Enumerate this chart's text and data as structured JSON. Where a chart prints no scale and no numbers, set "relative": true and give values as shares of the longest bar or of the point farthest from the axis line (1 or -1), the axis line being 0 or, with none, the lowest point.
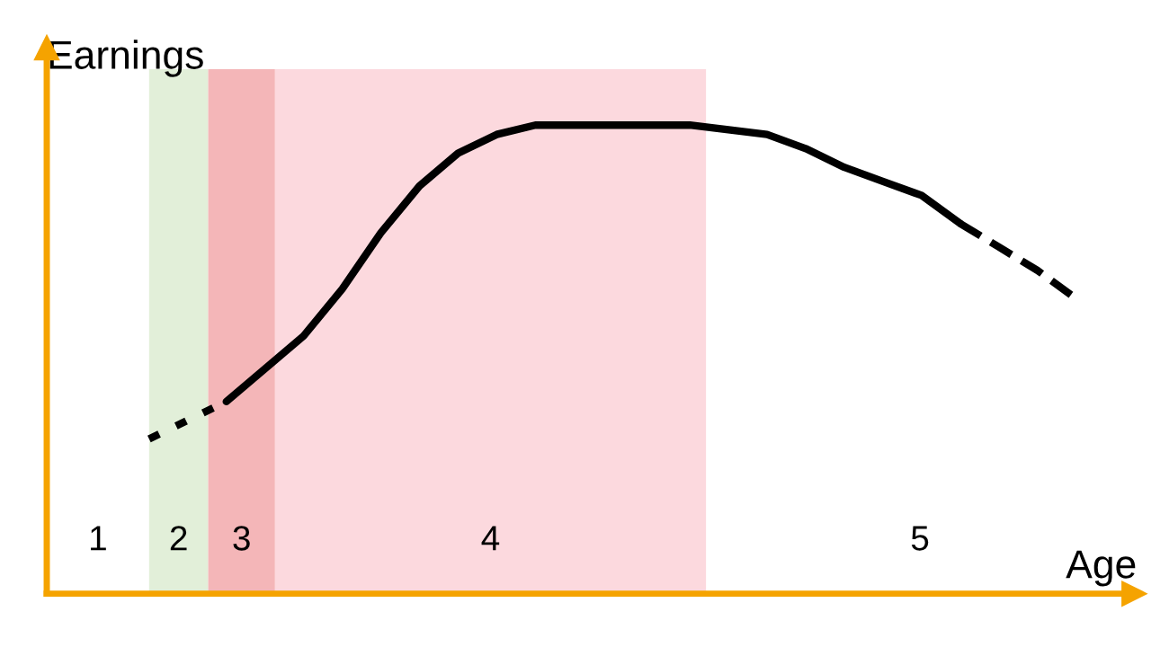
{
  "chart_data": {
    "type": "line",
    "relative": true,
    "xlabel": "Age",
    "ylabel": "Earnings",
    "categories": [
      null,
      null,
      null,
      null,
      null,
      null,
      null,
      null,
      null,
      null,
      null,
      null,
      null,
      null,
      null,
      null,
      null,
      null,
      null,
      null,
      null,
      null,
      null,
      null,
      null
    ],
    "series": [
      {
        "color": "#000000",
        "line_style": "dotted",
        "values": [
          0.33,
          0.37,
          0.41,
          null,
          null,
          null,
          null,
          null,
          null,
          null,
          null,
          null,
          null,
          null,
          null,
          null,
          null,
          null,
          null,
          null,
          null,
          null,
          null,
          null,
          null
        ]
      },
      {
        "color": "#000000",
        "line_style": "solid",
        "values": [
          null,
          null,
          0.41,
          0.48,
          0.55,
          0.65,
          0.77,
          0.87,
          0.94,
          0.98,
          1.0,
          1.0,
          1.0,
          1.0,
          1.0,
          0.99,
          0.98,
          0.95,
          0.91,
          0.88,
          0.85,
          0.79,
          null,
          null,
          null
        ]
      },
      {
        "color": "#000000",
        "line_style": "dashed",
        "values": [
          null,
          null,
          null,
          null,
          null,
          null,
          null,
          null,
          null,
          null,
          null,
          null,
          null,
          null,
          null,
          null,
          null,
          null,
          null,
          null,
          null,
          0.79,
          0.74,
          0.69,
          0.63
        ]
      }
    ],
    "annotations": [
      "1",
      "2",
      "3",
      "4",
      "5"
    ],
    "legend": false
  }
}
